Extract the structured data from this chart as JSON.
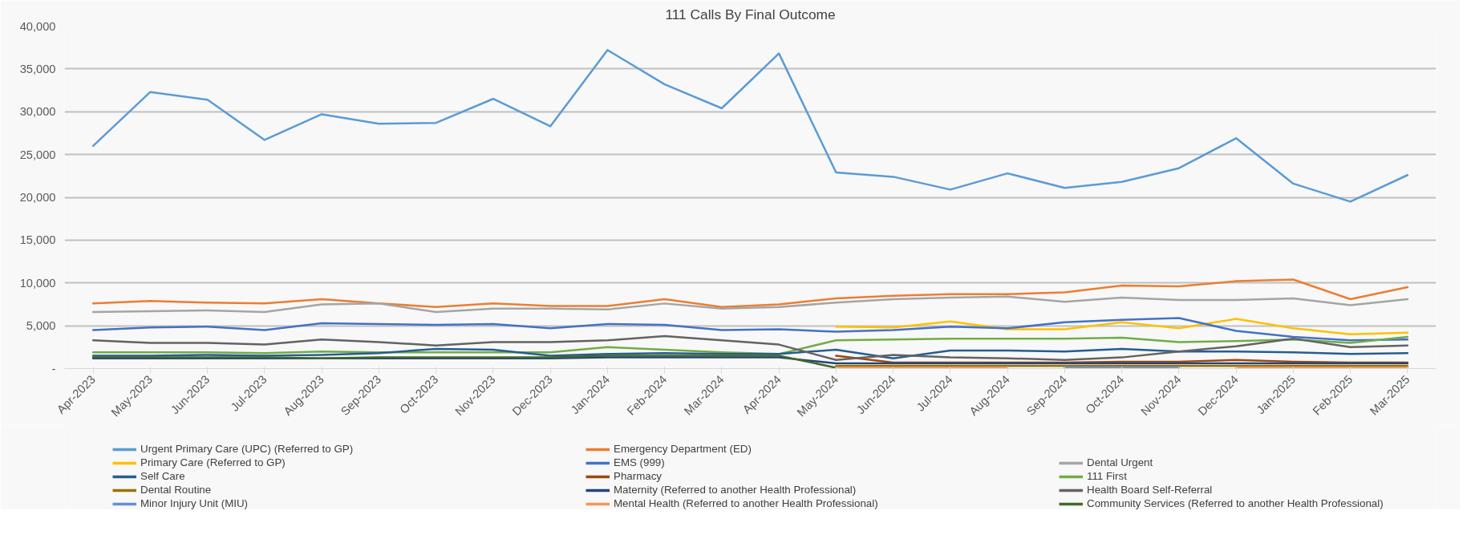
{
  "chart_data": {
    "type": "line",
    "title": "111 Calls By Final Outcome",
    "categories": [
      "Apr-2023",
      "May-2023",
      "Jun-2023",
      "Jul-2023",
      "Aug-2023",
      "Sep-2023",
      "Oct-2023",
      "Nov-2023",
      "Dec-2023",
      "Jan-2024",
      "Feb-2024",
      "Mar-2024",
      "Apr-2024",
      "May-2024",
      "Jun-2024",
      "Jul-2024",
      "Aug-2024",
      "Sep-2024",
      "Oct-2024",
      "Nov-2024",
      "Dec-2024",
      "Jan-2025",
      "Feb-2025",
      "Mar-2025"
    ],
    "series": [
      {
        "name": "Urgent Primary Care (UPC) (Referred to GP)",
        "color": "#5b9bd5",
        "values": [
          26000,
          32300,
          31400,
          26700,
          29700,
          28600,
          28700,
          31500,
          28300,
          37200,
          33200,
          30400,
          36800,
          22900,
          22400,
          20900,
          22800,
          21100,
          21800,
          23400,
          26900,
          21600,
          19500,
          22600
        ]
      },
      {
        "name": "Emergency Department (ED)",
        "color": "#ed7d31",
        "values": [
          7600,
          7900,
          7700,
          7600,
          8100,
          7600,
          7200,
          7600,
          7300,
          7300,
          8100,
          7200,
          7500,
          8200,
          8500,
          8700,
          8700,
          8900,
          9700,
          9600,
          10200,
          10400,
          8100,
          9500
        ]
      },
      {
        "name": "Dental Urgent",
        "color": "#a5a5a5",
        "values": [
          6600,
          6700,
          6800,
          6600,
          7500,
          7600,
          6600,
          7000,
          7000,
          6900,
          7600,
          7000,
          7200,
          7700,
          8100,
          8300,
          8400,
          7800,
          8300,
          8000,
          8000,
          8200,
          7400,
          8100
        ]
      },
      {
        "name": "Primary Care (Referred to GP)",
        "color": "#ffc000",
        "values": [
          null,
          null,
          null,
          null,
          null,
          null,
          null,
          null,
          null,
          null,
          null,
          null,
          null,
          4900,
          4800,
          5500,
          4600,
          4600,
          5400,
          4700,
          5800,
          4700,
          4000,
          4200
        ]
      },
      {
        "name": "EMS (999)",
        "color": "#4472c4",
        "values": [
          4500,
          4800,
          4900,
          4500,
          5300,
          5200,
          5100,
          5200,
          4700,
          5200,
          5100,
          4500,
          4600,
          4300,
          4500,
          4900,
          4700,
          5400,
          5700,
          5900,
          4400,
          3700,
          3300,
          3400
        ]
      },
      {
        "name": "111 First",
        "color": "#70ad47",
        "values": [
          1900,
          1900,
          1900,
          1800,
          2000,
          1900,
          1900,
          1900,
          1900,
          2500,
          2200,
          1900,
          1700,
          3300,
          3400,
          3500,
          3500,
          3500,
          3600,
          3100,
          3200,
          3400,
          3000,
          3700
        ]
      },
      {
        "name": "Self Care",
        "color": "#255e91",
        "values": [
          1500,
          1500,
          1600,
          1500,
          1600,
          1800,
          2300,
          2200,
          1500,
          1700,
          1800,
          1700,
          1700,
          2200,
          1200,
          2100,
          2100,
          2000,
          2300,
          2000,
          2000,
          1900,
          1700,
          1800
        ]
      },
      {
        "name": "Pharmacy",
        "color": "#9e480e",
        "values": [
          null,
          null,
          null,
          null,
          null,
          null,
          null,
          null,
          null,
          null,
          null,
          null,
          null,
          1500,
          700,
          700,
          700,
          700,
          800,
          800,
          1000,
          800,
          700,
          700
        ]
      },
      {
        "name": "Health Board Self-Referral",
        "color": "#636363",
        "values": [
          3300,
          3000,
          3000,
          2800,
          3400,
          3100,
          2700,
          3100,
          3100,
          3300,
          3800,
          3300,
          2800,
          1000,
          1600,
          1300,
          1200,
          1000,
          1300,
          2000,
          2600,
          3500,
          2500,
          2700
        ]
      },
      {
        "name": "Dental Routine",
        "color": "#997300",
        "values": [
          null,
          null,
          null,
          null,
          null,
          null,
          null,
          null,
          null,
          null,
          null,
          null,
          null,
          300,
          300,
          300,
          300,
          300,
          300,
          300,
          300,
          300,
          300,
          300
        ]
      },
      {
        "name": "Maternity (Referred to another Health Professional)",
        "color": "#264478",
        "values": [
          1200,
          1200,
          1200,
          1200,
          1200,
          1200,
          1200,
          1200,
          1200,
          1300,
          1300,
          1300,
          1300,
          600,
          600,
          600,
          600,
          600,
          600,
          600,
          600,
          600,
          600,
          600
        ]
      },
      {
        "name": "Community Services (Referred to another Health Professional)",
        "color": "#43682b",
        "values": [
          1300,
          1300,
          1300,
          1300,
          1200,
          1300,
          1300,
          1300,
          1300,
          1500,
          1500,
          1500,
          1500,
          100,
          null,
          null,
          null,
          null,
          null,
          null,
          null,
          null,
          null,
          null
        ]
      },
      {
        "name": "Minor Injury Unit (MIU)",
        "color": "#698ed0",
        "values": [
          null,
          null,
          null,
          null,
          null,
          null,
          null,
          null,
          null,
          null,
          null,
          null,
          null,
          null,
          null,
          null,
          null,
          100,
          100,
          100,
          null,
          null,
          null,
          null
        ]
      },
      {
        "name": "Mental Health (Referred to another Health Professional)",
        "color": "#f1975a",
        "values": [
          null,
          null,
          null,
          null,
          null,
          null,
          null,
          null,
          null,
          null,
          null,
          null,
          null,
          100,
          100,
          100,
          100,
          null,
          null,
          null,
          100,
          100,
          100,
          100
        ]
      }
    ],
    "ylim": [
      0,
      40000
    ],
    "yticks": [
      {
        "value": 0,
        "label": "-"
      },
      {
        "value": 5000,
        "label": "5,000"
      },
      {
        "value": 10000,
        "label": "10,000"
      },
      {
        "value": 15000,
        "label": "15,000"
      },
      {
        "value": 20000,
        "label": "20,000"
      },
      {
        "value": 25000,
        "label": "25,000"
      },
      {
        "value": 30000,
        "label": "30,000"
      },
      {
        "value": 35000,
        "label": "35,000"
      },
      {
        "value": 40000,
        "label": "40,000"
      }
    ],
    "grid": "y",
    "legend": "bottom",
    "marker": "none",
    "line_style": "solid"
  }
}
